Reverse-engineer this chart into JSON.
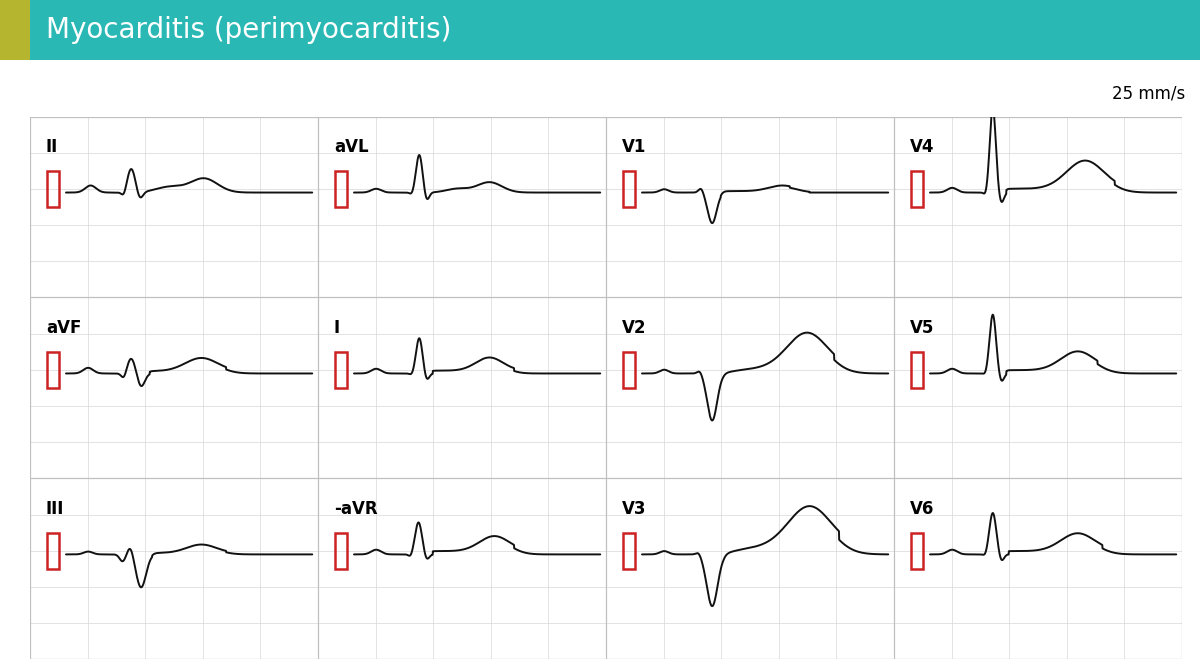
{
  "title": "Myocarditis (perimyocarditis)",
  "title_color": "#ffffff",
  "title_bg_color": "#2ab8b5",
  "title_accent_color": "#b5b530",
  "speed_label": "25 mm/s",
  "bg_color": "#ffffff",
  "ecg_bg_color": "#f0f0f0",
  "grid_minor_color": "#d8d8d8",
  "grid_major_color": "#c0c0c0",
  "ecg_color": "#111111",
  "cal_color": "#cc2222",
  "lead_layout": [
    [
      "II",
      "aVL",
      "V1",
      "V4"
    ],
    [
      "aVF",
      "I",
      "V2",
      "V5"
    ],
    [
      "III",
      "-aVR",
      "V3",
      "V6"
    ]
  ]
}
